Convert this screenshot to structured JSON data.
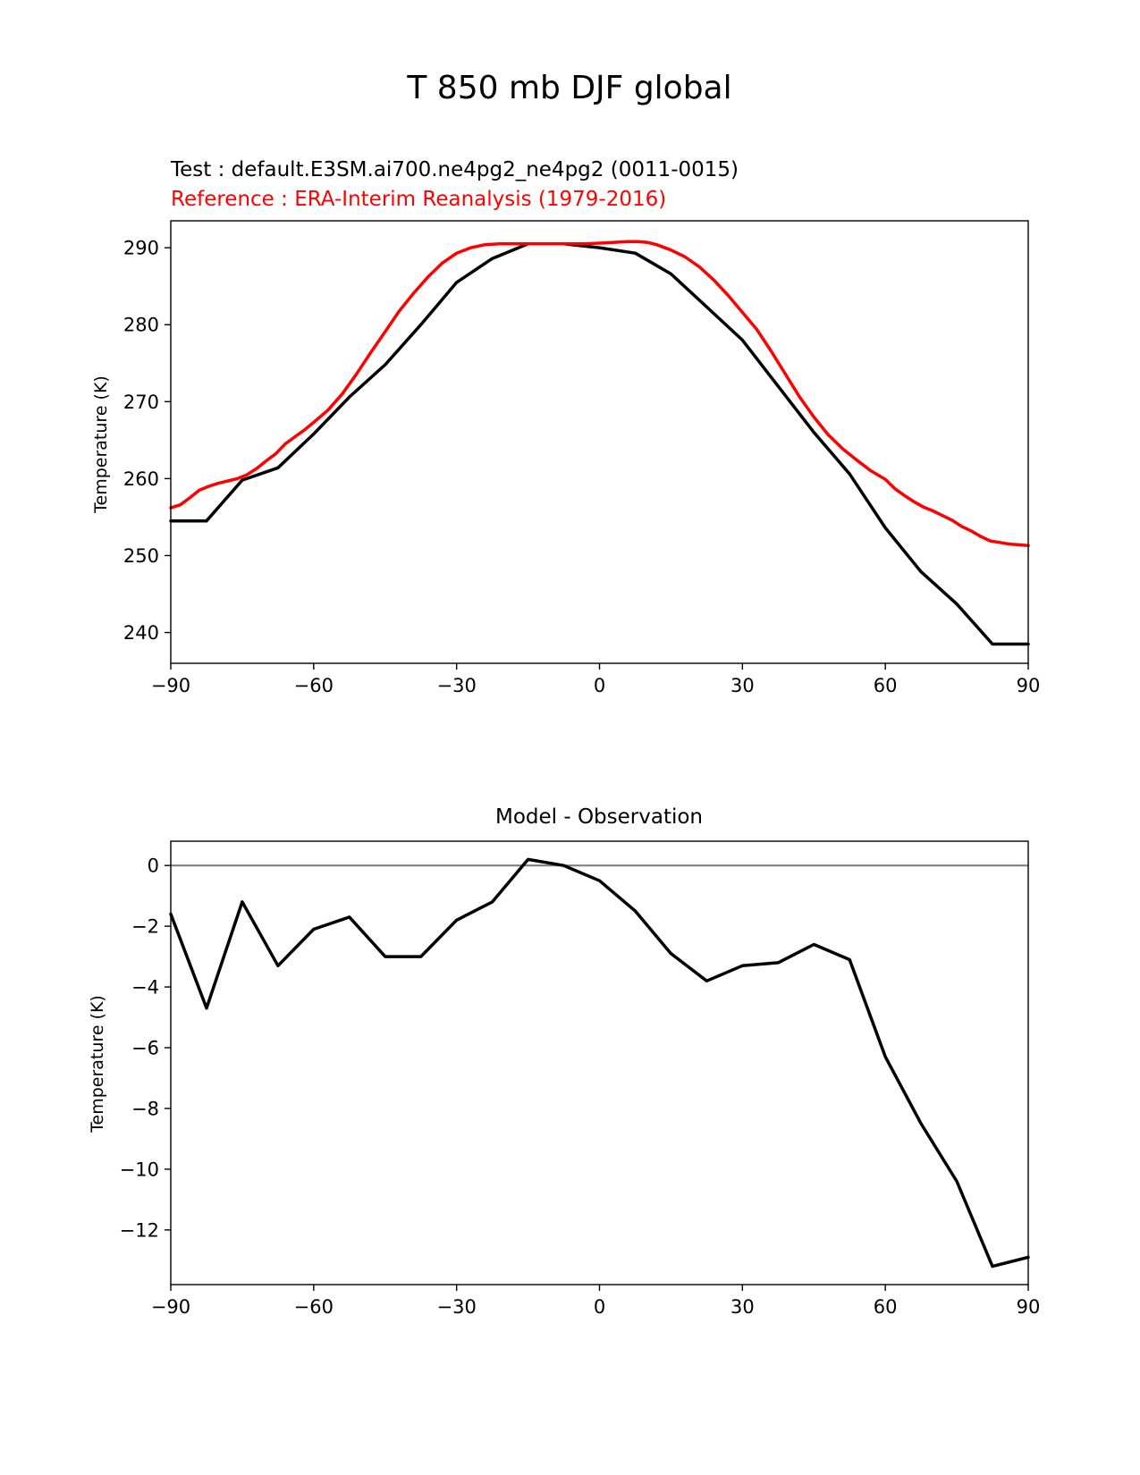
{
  "title": "T 850 mb DJF global",
  "colors": {
    "test": "#000000",
    "reference": "#ff0000",
    "zero_line": "#808080"
  },
  "chart_data": [
    {
      "type": "line",
      "name": "top",
      "subtitle_test": "Test : default.E3SM.ai700.ne4pg2_ne4pg2 (0011-0015)",
      "subtitle_reference": "Reference : ERA-Interim Reanalysis (1979-2016)",
      "xlabel": "",
      "ylabel": "Temperature (K)",
      "xlim": [
        -90,
        90
      ],
      "ylim": [
        236,
        293.5
      ],
      "xticks": [
        -90,
        -60,
        -30,
        0,
        30,
        60,
        90
      ],
      "xtick_labels": [
        "−90",
        "−60",
        "−30",
        "0",
        "30",
        "60",
        "90"
      ],
      "yticks": [
        240,
        250,
        260,
        270,
        280,
        290
      ],
      "ytick_labels": [
        "240",
        "250",
        "260",
        "270",
        "280",
        "290"
      ],
      "series": [
        {
          "name": "Test",
          "color": "#000000",
          "x": [
            -90,
            -82.5,
            -75,
            -67.5,
            -60,
            -52.5,
            -45,
            -37.5,
            -30,
            -22.5,
            -15,
            -7.5,
            0,
            7.5,
            15,
            22.5,
            30,
            37.5,
            45,
            52.5,
            60,
            67.5,
            75,
            82.5,
            90
          ],
          "y": [
            254.5,
            254.5,
            259.8,
            261.4,
            265.8,
            270.6,
            274.8,
            280.0,
            285.5,
            288.6,
            290.5,
            290.5,
            290.0,
            289.3,
            286.6,
            282.3,
            278.0,
            272.0,
            266.0,
            260.6,
            253.6,
            247.9,
            243.7,
            238.5,
            238.5
          ]
        },
        {
          "name": "Reference",
          "color": "#ff0000",
          "x": [
            -90,
            -88,
            -86,
            -84,
            -82,
            -80,
            -78,
            -76,
            -74,
            -72,
            -70,
            -68,
            -66,
            -64,
            -62,
            -60,
            -57,
            -54,
            -51,
            -48,
            -45,
            -42,
            -39,
            -36,
            -33,
            -30,
            -27,
            -24,
            -21,
            -18,
            -15,
            -12,
            -9,
            -6,
            -3,
            0,
            3,
            6,
            8,
            10,
            12,
            15,
            18,
            21,
            24,
            27,
            30,
            33,
            36,
            39,
            42,
            45,
            48,
            51,
            54,
            57,
            60,
            62,
            64,
            66,
            68,
            70,
            72,
            74,
            76,
            78,
            80,
            82,
            84,
            86,
            88,
            90
          ],
          "y": [
            256.2,
            256.6,
            257.5,
            258.5,
            259.0,
            259.4,
            259.7,
            260.0,
            260.5,
            261.3,
            262.3,
            263.2,
            264.5,
            265.4,
            266.3,
            267.3,
            268.9,
            271.0,
            273.6,
            276.4,
            279.1,
            281.8,
            284.1,
            286.2,
            288.0,
            289.3,
            290.0,
            290.4,
            290.5,
            290.5,
            290.5,
            290.5,
            290.5,
            290.5,
            290.5,
            290.6,
            290.7,
            290.8,
            290.8,
            290.7,
            290.4,
            289.7,
            288.8,
            287.5,
            285.8,
            283.8,
            281.6,
            279.4,
            276.6,
            273.6,
            270.6,
            268.0,
            265.7,
            263.9,
            262.4,
            261.0,
            259.9,
            258.7,
            257.8,
            257.0,
            256.3,
            255.8,
            255.2,
            254.6,
            253.8,
            253.2,
            252.5,
            251.9,
            251.7,
            251.5,
            251.4,
            251.3
          ]
        }
      ]
    },
    {
      "type": "line",
      "name": "bottom",
      "title": "Model - Observation",
      "xlabel": "",
      "ylabel": "Temperature (K)",
      "xlim": [
        -90,
        90
      ],
      "ylim": [
        -13.8,
        0.8
      ],
      "xticks": [
        -90,
        -60,
        -30,
        0,
        30,
        60,
        90
      ],
      "xtick_labels": [
        "−90",
        "−60",
        "−30",
        "0",
        "30",
        "60",
        "90"
      ],
      "yticks": [
        0,
        -2,
        -4,
        -6,
        -8,
        -10,
        -12
      ],
      "ytick_labels": [
        "0",
        "−2",
        "−4",
        "−6",
        "−8",
        "−10",
        "−12"
      ],
      "zero_line": 0,
      "series": [
        {
          "name": "Model - Observation",
          "color": "#000000",
          "x": [
            -90,
            -82.5,
            -75,
            -67.5,
            -60,
            -52.5,
            -45,
            -37.5,
            -30,
            -22.5,
            -15,
            -7.5,
            0,
            7.5,
            15,
            22.5,
            30,
            37.5,
            45,
            52.5,
            60,
            67.5,
            75,
            82.5,
            90
          ],
          "y": [
            -1.6,
            -4.7,
            -1.2,
            -3.3,
            -2.1,
            -1.7,
            -3.0,
            -3.0,
            -1.8,
            -1.2,
            0.2,
            0.0,
            -0.5,
            -1.5,
            -2.9,
            -3.8,
            -3.3,
            -3.2,
            -2.6,
            -3.1,
            -6.3,
            -8.5,
            -10.4,
            -13.2,
            -12.9
          ]
        }
      ]
    }
  ]
}
